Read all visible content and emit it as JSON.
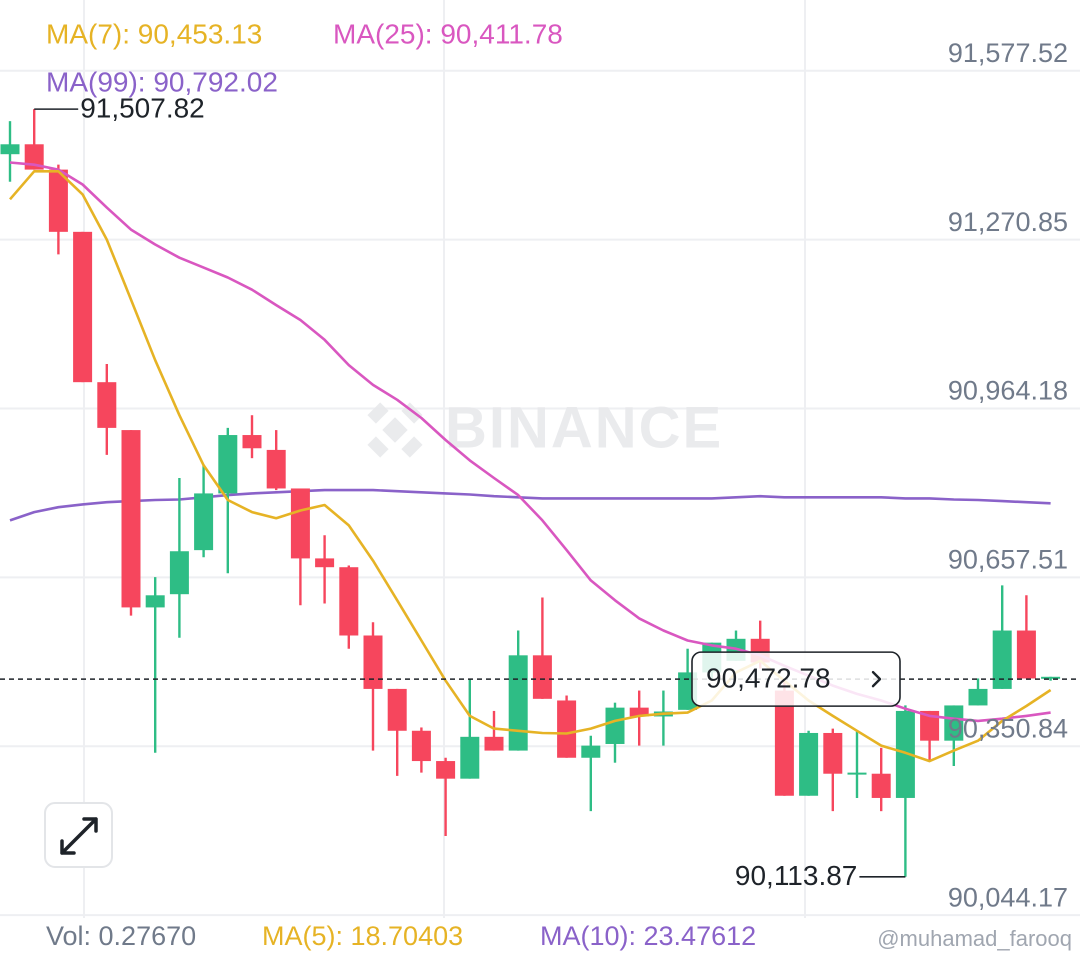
{
  "chart_data": {
    "type": "candlestick",
    "ohlc": [
      [
        91426,
        91486,
        91376,
        91444
      ],
      [
        91444,
        91507.82,
        91398,
        91398
      ],
      [
        91398,
        91407,
        91244,
        91285
      ],
      [
        91285,
        91285,
        91012,
        91012
      ],
      [
        91012,
        91045,
        90880,
        90929
      ],
      [
        90925,
        90925,
        90588,
        90603
      ],
      [
        90603,
        90658,
        90339,
        90625
      ],
      [
        90627,
        90838,
        90548,
        90705
      ],
      [
        90707,
        90861,
        90694,
        90810
      ],
      [
        90810,
        90929,
        90665,
        90916
      ],
      [
        90916,
        90952,
        90874,
        90892
      ],
      [
        90889,
        90925,
        90816,
        90819
      ],
      [
        90819,
        90819,
        90607,
        90692
      ],
      [
        90692,
        90734,
        90610,
        90676
      ],
      [
        90676,
        90679,
        90528,
        90552
      ],
      [
        90552,
        90576,
        90343,
        90455
      ],
      [
        90455,
        90455,
        90297,
        90379
      ],
      [
        90379,
        90385,
        90303,
        90324
      ],
      [
        90324,
        90330,
        90188,
        90292
      ],
      [
        90292,
        90474,
        90292,
        90368
      ],
      [
        90368,
        90415,
        90343,
        90343
      ],
      [
        90343,
        90561,
        90343,
        90516
      ],
      [
        90516,
        90621,
        90437,
        90437
      ],
      [
        90434,
        90443,
        90330,
        90330
      ],
      [
        90330,
        90370,
        90233,
        90352
      ],
      [
        90355,
        90430,
        90321,
        90421
      ],
      [
        90421,
        90452,
        90352,
        90405
      ],
      [
        90405,
        90452,
        90352,
        90414
      ],
      [
        90417,
        90528,
        90417,
        90485
      ],
      [
        90485,
        90539,
        90470,
        90539
      ],
      [
        90506,
        90561,
        90506,
        90546
      ],
      [
        90546,
        90579,
        90492,
        90503
      ],
      [
        90452,
        90470,
        90261,
        90261
      ],
      [
        90261,
        90379,
        90261,
        90375
      ],
      [
        90375,
        90383,
        90233,
        90301
      ],
      [
        90301,
        90379,
        90257,
        90303
      ],
      [
        90301,
        90348,
        90233,
        90257
      ],
      [
        90257,
        90425,
        90113.87,
        90415
      ],
      [
        90415,
        90415,
        90324,
        90361
      ],
      [
        90361,
        90425,
        90315,
        90425
      ],
      [
        90425,
        90474,
        90425,
        90455
      ],
      [
        90455,
        90643,
        90455,
        90561
      ],
      [
        90561,
        90625,
        90474,
        90474
      ],
      [
        90474,
        90477,
        90470,
        90477
      ]
    ],
    "up_color": "#2ebd85",
    "down_color": "#f6465d",
    "overlays": [
      {
        "name": "MA(7): 90,453.13",
        "color": "#e6b325",
        "values": [
          91344,
          91395,
          91395,
          91353,
          91271,
          91162,
          91052,
          90952,
          90861,
          90798,
          90776,
          90765,
          90779,
          90789,
          90752,
          90688,
          90616,
          90543,
          90470,
          90406,
          90383,
          90379,
          90375,
          90374,
          90383,
          90397,
          90406,
          90410,
          90412,
          90434,
          90485,
          90506,
          90470,
          90434,
          90406,
          90379,
          90352,
          90339,
          90324,
          90343,
          90361,
          90397,
          90424,
          90453
        ]
      },
      {
        "name": "MA(25): 90,411.78",
        "color": "#d957c0",
        "values": [
          91411,
          91407,
          91398,
          91371,
          91329,
          91289,
          91262,
          91238,
          91220,
          91202,
          91180,
          91152,
          91125,
          91089,
          91043,
          91007,
          90980,
          90947,
          90907,
          90870,
          90838,
          90807,
          90761,
          90707,
          90652,
          90616,
          90583,
          90561,
          90543,
          90534,
          90528,
          90516,
          90497,
          90479,
          90461,
          90446,
          90434,
          90419,
          90406,
          90401,
          90397,
          90401,
          90406,
          90412
        ]
      },
      {
        "name": "MA(99): 90,792.02",
        "color": "#8a62c9",
        "values": [
          90761,
          90776,
          90785,
          90790,
          90794,
          90796,
          90798,
          90799,
          90803,
          90807,
          90810,
          90812,
          90814,
          90816,
          90816,
          90816,
          90814,
          90812,
          90810,
          90808,
          90805,
          90803,
          90801,
          90801,
          90801,
          90801,
          90801,
          90801,
          90801,
          90801,
          90803,
          90805,
          90803,
          90803,
          90803,
          90803,
          90803,
          90801,
          90801,
          90799,
          90798,
          90796,
          90794,
          90792
        ]
      }
    ],
    "ylim": [
      90039,
      91706
    ],
    "yticks": [
      {
        "value": 91577.52,
        "label": "91,577.52"
      },
      {
        "value": 91270.85,
        "label": "91,270.85"
      },
      {
        "value": 90964.18,
        "label": "90,964.18"
      },
      {
        "value": 90657.51,
        "label": "90,657.51"
      },
      {
        "value": 90350.84,
        "label": "90,350.84"
      },
      {
        "value": 90044.17,
        "label": "90,044.17"
      }
    ],
    "grid": true,
    "high_marker": {
      "value": 91507.82,
      "label": "91,507.82"
    },
    "low_marker": {
      "value": 90113.87,
      "label": "90,113.87"
    },
    "last_price": {
      "value": 90472.78,
      "label": "90,472.78"
    },
    "watermark": "BINANCE",
    "volume_legend": [
      "Vol: 0.27670",
      "MA(5): 18.70403",
      "MA(10): 23.47612"
    ],
    "credit": "@muhamad_farooq"
  }
}
